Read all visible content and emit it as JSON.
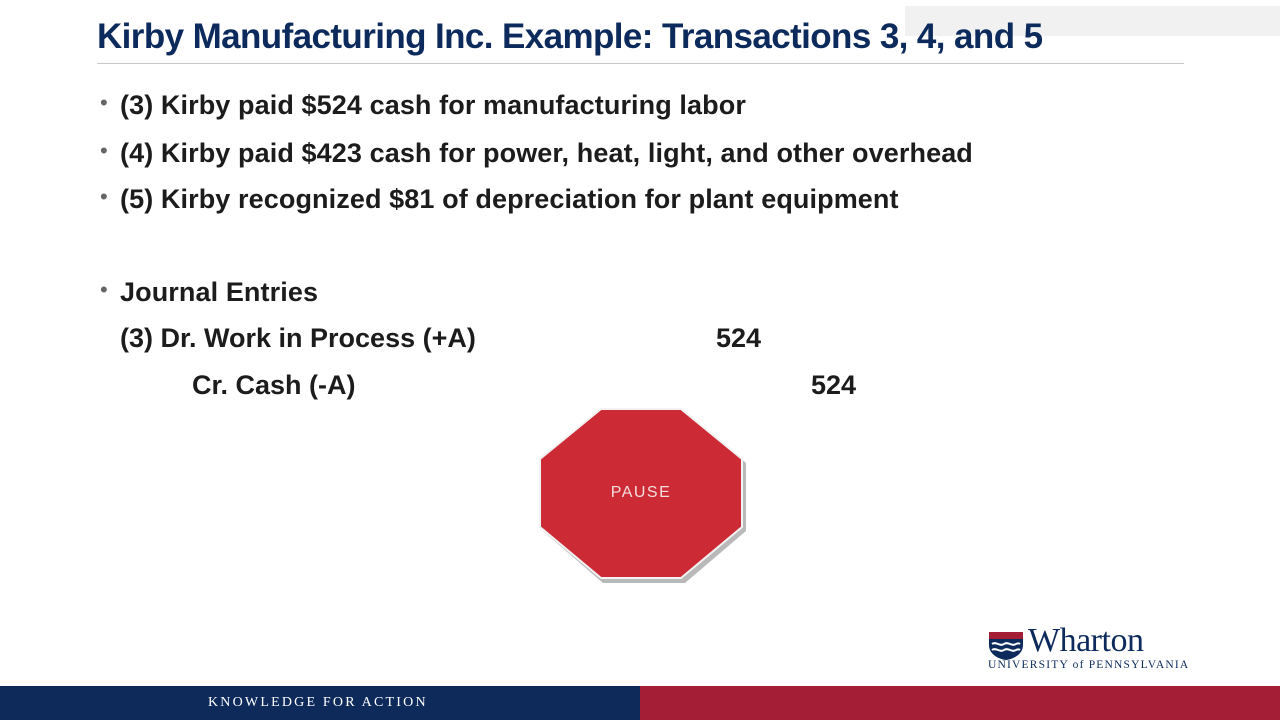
{
  "title": "Kirby Manufacturing Inc. Example: Transactions 3, 4, and 5",
  "bullets": [
    "(3) Kirby paid $524 cash for manufacturing labor",
    "(4) Kirby paid $423 cash for power, heat, light, and other overhead",
    "(5) Kirby recognized $81 of depreciation for plant equipment",
    "Journal Entries"
  ],
  "journal": {
    "debit_line": "(3) Dr. Work in Process (+A)",
    "debit_amount": "524",
    "credit_line": "Cr. Cash (-A)",
    "credit_amount": "524"
  },
  "stop_sign": {
    "label": "PAUSE",
    "color": "#cc2b35"
  },
  "logo": {
    "wordmark": "Wharton",
    "subtitle": "UNIVERSITY of PENNSYLVANIA"
  },
  "footer": {
    "tagline": "KNOWLEDGE FOR ACTION",
    "left_color": "#0d2a5b",
    "right_color": "#a41f35"
  }
}
